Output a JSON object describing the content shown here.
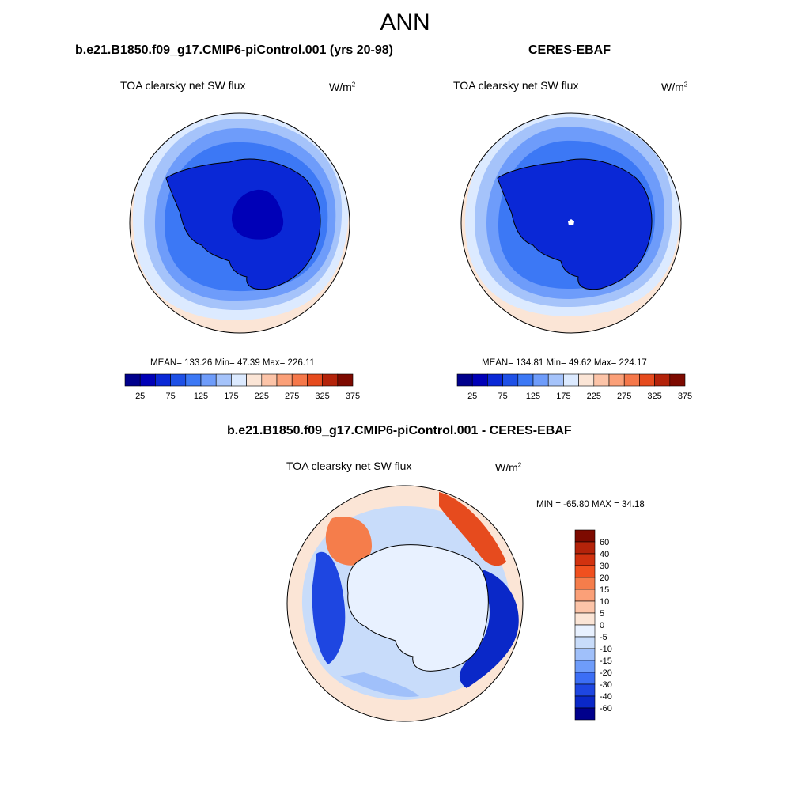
{
  "season": "ANN",
  "panels": [
    {
      "case_title": "b.e21.B1850.f09_g17.CMIP6-piControl.001 (yrs 20-98)",
      "field": "TOA clearsky net SW flux",
      "units": "W/m",
      "units_exp": "2",
      "stats": "MEAN= 133.26  Min=  47.39  Max= 226.11"
    },
    {
      "case_title": "CERES-EBAF",
      "field": "TOA clearsky net SW flux",
      "units": "W/m",
      "units_exp": "2",
      "stats": "MEAN= 134.81  Min=  49.62  Max= 224.17"
    }
  ],
  "colorbar_top": {
    "ticks": [
      "25",
      "75",
      "125",
      "175",
      "225",
      "275",
      "325",
      "375"
    ],
    "colors": [
      "#00008c",
      "#0000b7",
      "#0a28d6",
      "#1e50e6",
      "#3c78f5",
      "#6e9cfa",
      "#a5c3fa",
      "#dceaff",
      "#fbe5d6",
      "#fcc4a8",
      "#fba078",
      "#f5784a",
      "#e64b1e",
      "#b4230a",
      "#7d0a00"
    ]
  },
  "diff": {
    "title": "b.e21.B1850.f09_g17.CMIP6-piControl.001 - CERES-EBAF",
    "field": "TOA clearsky net SW flux",
    "units": "W/m",
    "units_exp": "2",
    "stats": "MIN = -65.80 MAX =  34.18",
    "colorbar": {
      "labels": [
        "60",
        "40",
        "30",
        "20",
        "15",
        "10",
        "5",
        "0",
        "-5",
        "-10",
        "-15",
        "-20",
        "-30",
        "-40",
        "-60"
      ],
      "colors": [
        "#7d0a00",
        "#b4230a",
        "#d2320f",
        "#f0501e",
        "#f57d4b",
        "#fba078",
        "#fcc4a8",
        "#fbe5d6",
        "#e8f1ff",
        "#c8dcfa",
        "#a0c0fa",
        "#6e9cfa",
        "#3c6ef5",
        "#1e46e1",
        "#0a28c8",
        "#00008c"
      ]
    }
  }
}
